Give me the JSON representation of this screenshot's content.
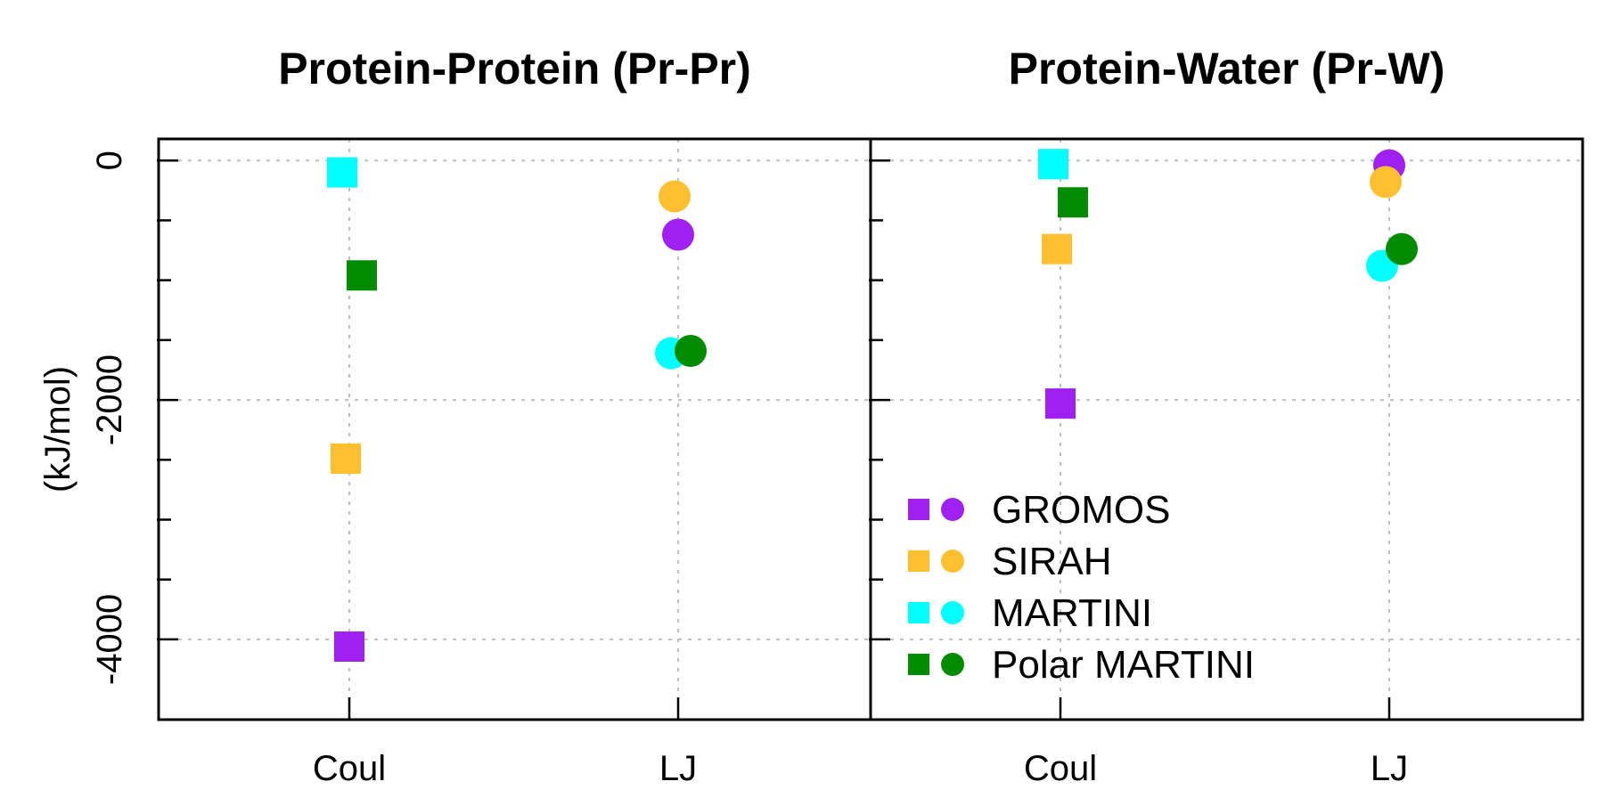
{
  "chart_data": {
    "type": "scatter",
    "ylabel": "(kJ/mol)",
    "ylim": [
      -4670,
      180
    ],
    "y_ticks_labeled": [
      0,
      -2000,
      -4000
    ],
    "y_ticks_minor": [
      -500,
      -1000,
      -1500,
      -2500,
      -3000,
      -3500
    ],
    "grid": true,
    "categories": [
      "Coul",
      "LJ"
    ],
    "legend": {
      "placement": "bottom-left of right panel",
      "entries": [
        {
          "name": "GROMOS",
          "color": "#A020F0"
        },
        {
          "name": "SIRAH",
          "color": "#FFBF2F"
        },
        {
          "name": "MARTINI",
          "color": "#00FFFF"
        },
        {
          "name": "Polar MARTINI",
          "color": "#008B00"
        }
      ]
    },
    "markers": {
      "Coul": "square",
      "LJ": "circle"
    },
    "panels": [
      {
        "title": "Protein-Protein (Pr-Pr)",
        "series": [
          {
            "name": "GROMOS",
            "color": "#A020F0",
            "values": {
              "Coul": -4060,
              "LJ": -620
            }
          },
          {
            "name": "SIRAH",
            "color": "#FFBF2F",
            "values": {
              "Coul": -2490,
              "LJ": -300
            }
          },
          {
            "name": "MARTINI",
            "color": "#00FFFF",
            "values": {
              "Coul": -100,
              "LJ": -1610
            }
          },
          {
            "name": "Polar MARTINI",
            "color": "#008B00",
            "values": {
              "Coul": -960,
              "LJ": -1590
            }
          }
        ]
      },
      {
        "title": "Protein-Water (Pr-W)",
        "series": [
          {
            "name": "GROMOS",
            "color": "#A020F0",
            "values": {
              "Coul": -2030,
              "LJ": -40
            }
          },
          {
            "name": "SIRAH",
            "color": "#FFBF2F",
            "values": {
              "Coul": -740,
              "LJ": -180
            }
          },
          {
            "name": "MARTINI",
            "color": "#00FFFF",
            "values": {
              "Coul": -30,
              "LJ": -880
            }
          },
          {
            "name": "Polar MARTINI",
            "color": "#008B00",
            "values": {
              "Coul": -350,
              "LJ": -740
            }
          }
        ]
      }
    ]
  }
}
